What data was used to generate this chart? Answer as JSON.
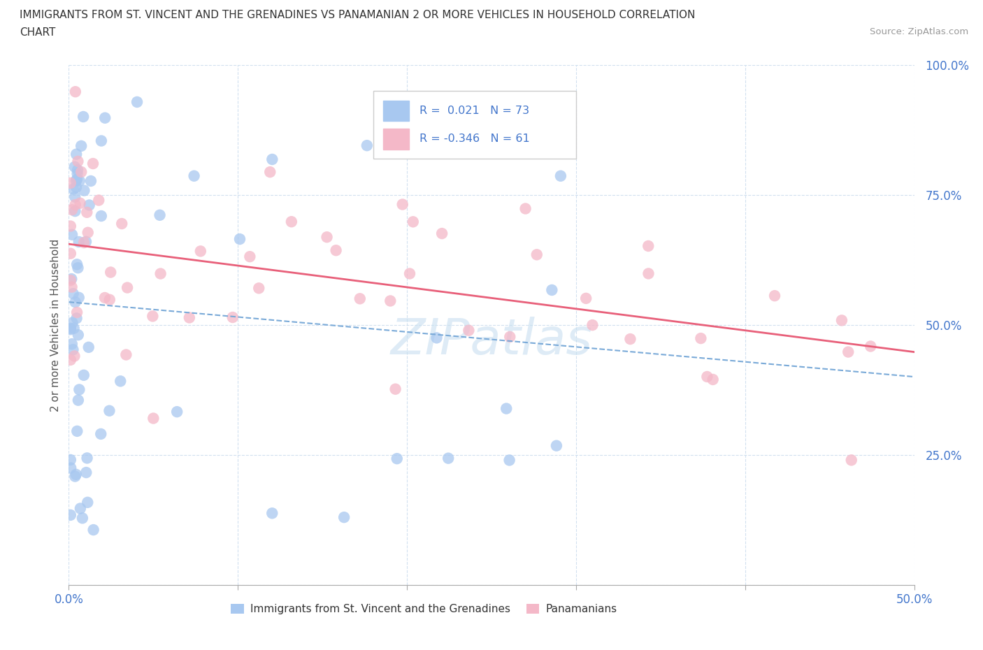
{
  "title_line1": "IMMIGRANTS FROM ST. VINCENT AND THE GRENADINES VS PANAMANIAN 2 OR MORE VEHICLES IN HOUSEHOLD CORRELATION",
  "title_line2": "CHART",
  "source": "Source: ZipAtlas.com",
  "ylabel": "2 or more Vehicles in Household",
  "legend_blue_r": "0.021",
  "legend_blue_n": "73",
  "legend_pink_r": "-0.346",
  "legend_pink_n": "61",
  "legend_label1": "Immigrants from St. Vincent and the Grenadines",
  "legend_label2": "Panamanians",
  "blue_color": "#a8c8f0",
  "pink_color": "#f4b8c8",
  "trendline_blue_color": "#7aaad8",
  "trendline_pink_color": "#e8607a",
  "legend_text_color": "#4477cc",
  "tick_color": "#4477cc",
  "watermark": "ZIPatlas",
  "watermark_color": "#c8dff0",
  "background_color": "#ffffff",
  "grid_color": "#ccddee",
  "source_color": "#999999",
  "title_color": "#333333",
  "ylabel_color": "#555555"
}
